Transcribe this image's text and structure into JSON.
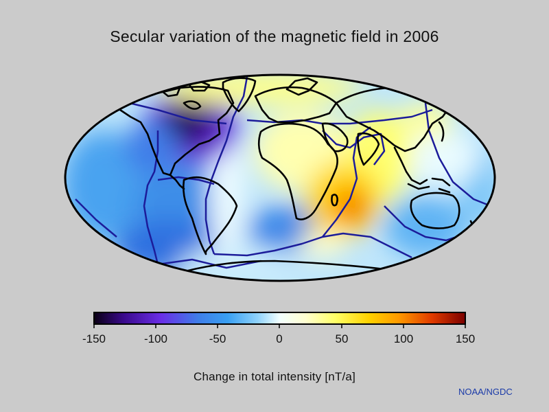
{
  "title": "Secular variation of the magnetic field in 2006",
  "projection": "Mollweide",
  "colorbar": {
    "label": "Change in total intensity [nT/a]",
    "min": -150,
    "max": 150,
    "ticks": [
      "-150",
      "-100",
      "-50",
      "0",
      "50",
      "100",
      "150"
    ],
    "colors": [
      "#0a0014",
      "#3a0a8c",
      "#6a2ee6",
      "#3f7de8",
      "#3aa0f2",
      "#8fd2fb",
      "#f2ffff",
      "#ffffd0",
      "#ffff66",
      "#ffd200",
      "#ff9a00",
      "#e03b00",
      "#7a0000"
    ]
  },
  "colors": {
    "background": "#cbcbcb",
    "coastline": "#000000",
    "plate_boundary": "#1c1c9a"
  },
  "credit": "NOAA/NGDC"
}
